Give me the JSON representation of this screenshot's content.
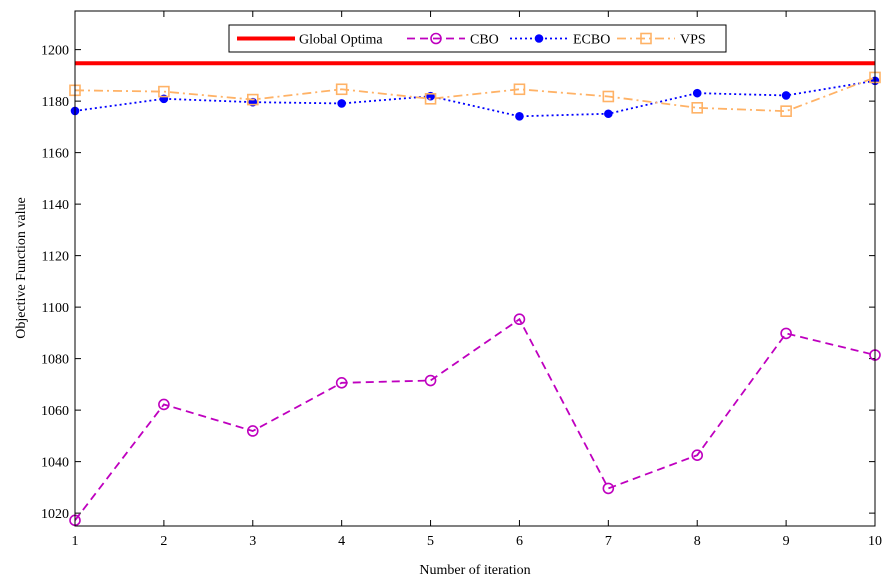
{
  "chart_data": {
    "type": "line",
    "title": "",
    "xlabel": "Number of iteration",
    "ylabel": "Objective Function value",
    "xlim": [
      1,
      10
    ],
    "ylim": [
      1015,
      1215
    ],
    "x_ticks": [
      1,
      2,
      3,
      4,
      5,
      6,
      7,
      8,
      9,
      10
    ],
    "y_ticks": [
      1020,
      1040,
      1060,
      1080,
      1100,
      1120,
      1140,
      1160,
      1180,
      1200
    ],
    "grid": false,
    "legend_placement": "top",
    "x": [
      1,
      2,
      3,
      4,
      5,
      6,
      7,
      8,
      9,
      10
    ],
    "series": [
      {
        "name": "Global Optima",
        "color": "#ff0000",
        "line": "solid",
        "marker": "none",
        "values": [
          1194.7,
          1194.7,
          1194.7,
          1194.7,
          1194.7,
          1194.7,
          1194.7,
          1194.7,
          1194.7,
          1194.7
        ]
      },
      {
        "name": "CBO",
        "color": "#bf00bf",
        "line": "dashed",
        "marker": "circle",
        "values": [
          1017.2,
          1062.2,
          1051.9,
          1070.6,
          1071.5,
          1095.3,
          1029.6,
          1042.5,
          1089.8,
          1081.4
        ]
      },
      {
        "name": "ECBO",
        "color": "#0000ff",
        "line": "dotted",
        "marker": "dot",
        "values": [
          1176.2,
          1180.9,
          1179.6,
          1179.1,
          1181.9,
          1174.1,
          1175.1,
          1183.1,
          1182.2,
          1187.9
        ]
      },
      {
        "name": "VPS",
        "color": "#ffb266",
        "line": "dashdot",
        "marker": "square",
        "values": [
          1184.2,
          1183.7,
          1180.6,
          1184.6,
          1180.9,
          1184.6,
          1181.8,
          1177.4,
          1176.1,
          1189.2
        ]
      }
    ]
  }
}
